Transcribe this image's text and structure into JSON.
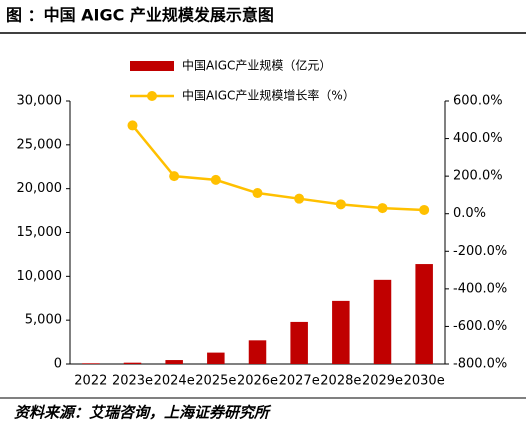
{
  "chart_data": {
    "type": "bar-line",
    "title": "图 ：中国 AIGC 产业规模发展示意图",
    "source": "资料来源：艾瑞咨询，上海证券研究所",
    "categories": [
      "2022",
      "2023e",
      "2024e",
      "2025e",
      "2026e",
      "2027e",
      "2028e",
      "2029e",
      "2030e"
    ],
    "series": [
      {
        "name": "中国AIGC产业规模（亿元）",
        "type": "bar",
        "color": "#c00000",
        "values": [
          80,
          150,
          450,
          1300,
          2700,
          4800,
          7200,
          9600,
          11400
        ]
      },
      {
        "name": "中国AIGC产业规模增长率（%）",
        "type": "line",
        "axis": "y2",
        "color": "#ffc000",
        "values": [
          null,
          470,
          200,
          180,
          110,
          80,
          50,
          30,
          20
        ]
      }
    ],
    "ylim": [
      0,
      30000
    ],
    "yticks": [
      0,
      {
        "value": 5000,
        "label": "5,000"
      },
      {
        "value": 10000,
        "label": "10,000"
      },
      {
        "value": 15000,
        "label": "15,000"
      },
      {
        "value": 20000,
        "label": "20,000"
      },
      {
        "value": 25000,
        "label": "25,000"
      },
      {
        "value": 30000,
        "label": "30,000"
      }
    ],
    "y2lim": [
      -800,
      600
    ],
    "y2ticks": [
      {
        "value": -800,
        "label": "-800.0%"
      },
      {
        "value": -600,
        "label": "-600.0%"
      },
      {
        "value": -400,
        "label": "-400.0%"
      },
      {
        "value": -200,
        "label": "-200.0%"
      },
      {
        "value": 0,
        "label": "0.0%"
      },
      {
        "value": 200,
        "label": "200.0%"
      },
      {
        "value": 400,
        "label": "400.0%"
      },
      {
        "value": 600,
        "label": "600.0%"
      }
    ],
    "grid": false
  }
}
